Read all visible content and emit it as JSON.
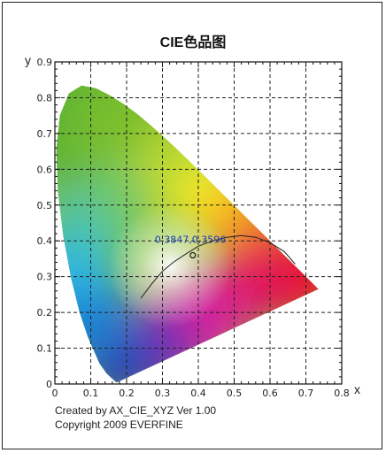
{
  "chart_data": {
    "type": "scatter",
    "title": "CIE色品图",
    "xlabel": "x",
    "ylabel": "y",
    "xlim": [
      0,
      0.8
    ],
    "ylim": [
      0,
      0.9
    ],
    "x_ticks": [
      "0",
      "0.1",
      "0.2",
      "0.3",
      "0.4",
      "0.5",
      "0.6",
      "0.7",
      "0.8"
    ],
    "y_ticks": [
      "0",
      "0.1",
      "0.2",
      "0.3",
      "0.4",
      "0.5",
      "0.6",
      "0.7",
      "0.8",
      "0.9"
    ],
    "grid": true,
    "point": {
      "x": 0.3847,
      "y": 0.3596,
      "label": "0.3847,0.3596"
    },
    "planckian_locus": [
      [
        0.24,
        0.24
      ],
      [
        0.27,
        0.28
      ],
      [
        0.3,
        0.315
      ],
      [
        0.33,
        0.34
      ],
      [
        0.36,
        0.36
      ],
      [
        0.4,
        0.385
      ],
      [
        0.44,
        0.4
      ],
      [
        0.48,
        0.41
      ],
      [
        0.52,
        0.415
      ],
      [
        0.56,
        0.41
      ],
      [
        0.6,
        0.395
      ],
      [
        0.64,
        0.37
      ],
      [
        0.67,
        0.335
      ]
    ],
    "spectral_locus": [
      [
        0.1741,
        0.005
      ],
      [
        0.1738,
        0.0049
      ],
      [
        0.1721,
        0.0048
      ],
      [
        0.1689,
        0.0069
      ],
      [
        0.1644,
        0.0109
      ],
      [
        0.1566,
        0.0177
      ],
      [
        0.144,
        0.0297
      ],
      [
        0.1241,
        0.0578
      ],
      [
        0.0913,
        0.1327
      ],
      [
        0.0687,
        0.2007
      ],
      [
        0.0454,
        0.295
      ],
      [
        0.0235,
        0.4127
      ],
      [
        0.0082,
        0.5384
      ],
      [
        0.0039,
        0.6548
      ],
      [
        0.0139,
        0.7502
      ],
      [
        0.0389,
        0.812
      ],
      [
        0.0743,
        0.8338
      ],
      [
        0.1142,
        0.8262
      ],
      [
        0.1547,
        0.8059
      ],
      [
        0.1929,
        0.7816
      ],
      [
        0.2296,
        0.7543
      ],
      [
        0.2658,
        0.7243
      ],
      [
        0.3016,
        0.6923
      ],
      [
        0.3373,
        0.6589
      ],
      [
        0.3731,
        0.6245
      ],
      [
        0.4087,
        0.5896
      ],
      [
        0.4441,
        0.5547
      ],
      [
        0.4788,
        0.5202
      ],
      [
        0.5125,
        0.4866
      ],
      [
        0.5448,
        0.4544
      ],
      [
        0.5752,
        0.4242
      ],
      [
        0.6029,
        0.3965
      ],
      [
        0.627,
        0.3725
      ],
      [
        0.6482,
        0.3514
      ],
      [
        0.6658,
        0.334
      ],
      [
        0.6915,
        0.3083
      ],
      [
        0.7347,
        0.2653
      ]
    ]
  },
  "footer": {
    "line1": "Created by AX_CIE_XYZ Ver 1.00",
    "line2": "Copyright 2009 EVERFINE"
  }
}
